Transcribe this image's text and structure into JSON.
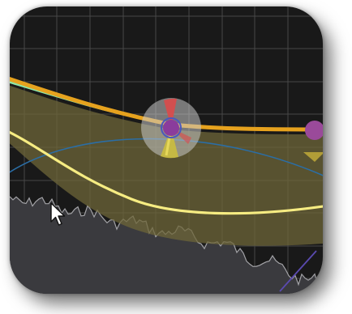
{
  "app": {
    "view": "eq-curve-display",
    "theme": {
      "background": "#191919",
      "grid": "#4a4a4a",
      "main_curve": "#e8a020",
      "band_curve": "#f3e87a",
      "band_fill": "#6a6438",
      "green_curve": "#7fe0a0",
      "blue_curve": "#2a6aa0",
      "spectrum_fill": "#3a3a3e",
      "spectrum_line": "#9a9a9e",
      "accent_red": "#e04848",
      "node_purple": "#9a4a9a"
    }
  },
  "nodes": [
    {
      "id": "band-1",
      "state": "selected",
      "icon": "eq-node-with-ring"
    },
    {
      "id": "band-2",
      "state": "normal",
      "icon": "eq-node"
    }
  ],
  "pointer": {
    "icon": "mouse-pointer-icon"
  }
}
